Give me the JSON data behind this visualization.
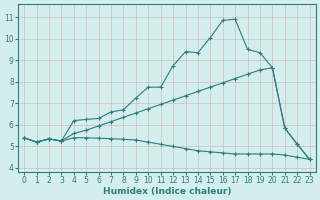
{
  "xlabel": "Humidex (Indice chaleur)",
  "bg_color": "#d4eeed",
  "line_color": "#2d7d7d",
  "grid_color": "#b0d8d4",
  "xlim": [
    -0.5,
    23.5
  ],
  "ylim": [
    3.8,
    11.6
  ],
  "xticks": [
    0,
    1,
    2,
    3,
    4,
    5,
    6,
    7,
    8,
    9,
    10,
    11,
    12,
    13,
    14,
    15,
    16,
    17,
    18,
    19,
    20,
    21,
    22,
    23
  ],
  "yticks": [
    4,
    5,
    6,
    7,
    8,
    9,
    10,
    11
  ],
  "line1_x": [
    0,
    1,
    2,
    3,
    4,
    5,
    6,
    7,
    8,
    9,
    10,
    11,
    12,
    13,
    14,
    15,
    16,
    17,
    18,
    19,
    20,
    21,
    22,
    23
  ],
  "line1_y": [
    5.4,
    5.2,
    5.35,
    5.25,
    6.2,
    6.25,
    6.3,
    6.6,
    6.7,
    7.25,
    7.75,
    7.75,
    8.75,
    9.4,
    9.35,
    10.05,
    10.85,
    10.9,
    9.5,
    9.35,
    8.65,
    5.85,
    5.1,
    4.4
  ],
  "line2_x": [
    0,
    1,
    2,
    3,
    4,
    5,
    6,
    7,
    8,
    9,
    10,
    11,
    12,
    13,
    14,
    15,
    16,
    17,
    18,
    19,
    20,
    21,
    22,
    23
  ],
  "line2_y": [
    5.4,
    5.2,
    5.35,
    5.25,
    5.6,
    5.75,
    5.95,
    6.15,
    6.35,
    6.55,
    6.75,
    6.95,
    7.15,
    7.35,
    7.55,
    7.75,
    7.95,
    8.15,
    8.35,
    8.55,
    8.65,
    5.85,
    5.1,
    4.4
  ],
  "line3_x": [
    0,
    1,
    2,
    3,
    4,
    5,
    6,
    7,
    8,
    9,
    10,
    11,
    12,
    13,
    14,
    15,
    16,
    17,
    18,
    19,
    20,
    21,
    22,
    23
  ],
  "line3_y": [
    5.4,
    5.2,
    5.35,
    5.25,
    5.4,
    5.4,
    5.38,
    5.36,
    5.33,
    5.3,
    5.2,
    5.1,
    5.0,
    4.9,
    4.8,
    4.75,
    4.7,
    4.65,
    4.65,
    4.65,
    4.65,
    4.6,
    4.5,
    4.4
  ]
}
